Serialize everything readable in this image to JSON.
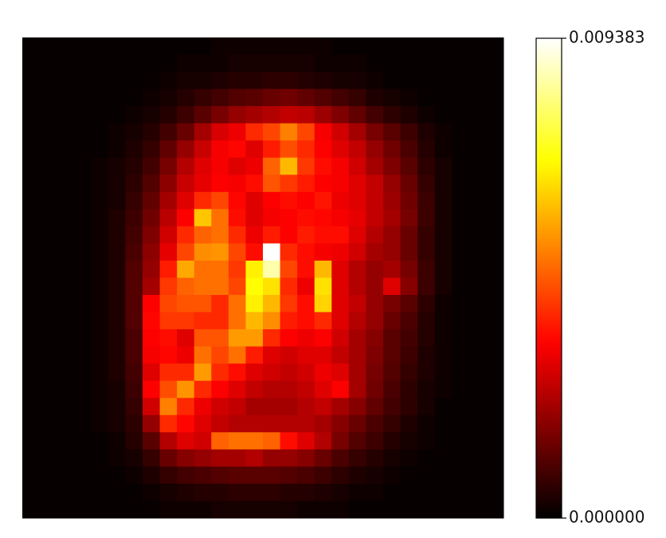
{
  "chart_data": {
    "type": "heatmap",
    "colormap": "hot",
    "values": [
      [
        0.0001,
        0.0001,
        0.0001,
        0.0001,
        0.0001,
        0.0001,
        0.0001,
        0.0001,
        0.0001,
        0.0001,
        0.0001,
        0.0002,
        0.0002,
        0.0002,
        0.0002,
        0.0002,
        0.0002,
        0.0002,
        0.0001,
        0.0001,
        0.0001,
        0.0001,
        0.0001,
        0.0001,
        0.0001,
        0.0001,
        0.0001,
        0.0001
      ],
      [
        0.0001,
        0.0001,
        0.0001,
        0.0001,
        0.0001,
        0.0001,
        0.0001,
        0.0001,
        0.0001,
        0.0002,
        0.0002,
        0.0002,
        0.0003,
        0.0003,
        0.0003,
        0.0003,
        0.0003,
        0.0002,
        0.0002,
        0.0002,
        0.0001,
        0.0001,
        0.0001,
        0.0001,
        0.0001,
        0.0001,
        0.0001,
        0.0001
      ],
      [
        0.0001,
        0.0001,
        0.0001,
        0.0001,
        0.0001,
        0.0001,
        0.0001,
        0.0001,
        0.0002,
        0.0003,
        0.0003,
        0.0004,
        0.0005,
        0.0005,
        0.0006,
        0.0006,
        0.0005,
        0.0004,
        0.0003,
        0.0003,
        0.0002,
        0.0001,
        0.0001,
        0.0001,
        0.0001,
        0.0001,
        0.0001,
        0.0001
      ],
      [
        0.0001,
        0.0001,
        0.0001,
        0.0001,
        0.0001,
        0.0001,
        0.0001,
        0.0002,
        0.0003,
        0.0005,
        0.0007,
        0.0009,
        0.0011,
        0.0012,
        0.0014,
        0.0015,
        0.0013,
        0.0011,
        0.0009,
        0.0007,
        0.0004,
        0.0003,
        0.0002,
        0.0001,
        0.0001,
        0.0001,
        0.0001,
        0.0001
      ],
      [
        0.0001,
        0.0001,
        0.0001,
        0.0001,
        0.0001,
        0.0001,
        0.0002,
        0.0003,
        0.0005,
        0.0008,
        0.0012,
        0.0016,
        0.002,
        0.0022,
        0.0024,
        0.0026,
        0.0025,
        0.0021,
        0.0017,
        0.0013,
        0.0009,
        0.0006,
        0.0004,
        0.0002,
        0.0001,
        0.0001,
        0.0001,
        0.0001
      ],
      [
        0.0001,
        0.0001,
        0.0001,
        0.0001,
        0.0001,
        0.0002,
        0.0003,
        0.0005,
        0.0009,
        0.0014,
        0.0022,
        0.0029,
        0.0032,
        0.004,
        0.0044,
        0.0052,
        0.0044,
        0.0033,
        0.0028,
        0.0022,
        0.0016,
        0.0012,
        0.0008,
        0.0004,
        0.0002,
        0.0001,
        0.0001,
        0.0001
      ],
      [
        0.0001,
        0.0001,
        0.0001,
        0.0001,
        0.0001,
        0.0002,
        0.0004,
        0.0007,
        0.0013,
        0.002,
        0.0027,
        0.0033,
        0.0035,
        0.003,
        0.0038,
        0.0045,
        0.004,
        0.0034,
        0.003,
        0.0026,
        0.002,
        0.0015,
        0.001,
        0.0005,
        0.0002,
        0.0001,
        0.0001,
        0.0001
      ],
      [
        0.0001,
        0.0001,
        0.0001,
        0.0001,
        0.0002,
        0.0003,
        0.0005,
        0.0009,
        0.0016,
        0.0024,
        0.003,
        0.0033,
        0.003,
        0.0032,
        0.0048,
        0.006,
        0.0042,
        0.0036,
        0.0033,
        0.0028,
        0.0022,
        0.0017,
        0.0012,
        0.0006,
        0.0003,
        0.0001,
        0.0001,
        0.0001
      ],
      [
        0.0001,
        0.0001,
        0.0001,
        0.0001,
        0.0002,
        0.0003,
        0.0006,
        0.0011,
        0.0019,
        0.0027,
        0.0031,
        0.0034,
        0.0033,
        0.0036,
        0.0046,
        0.0042,
        0.0038,
        0.0034,
        0.0033,
        0.003,
        0.0026,
        0.002,
        0.0014,
        0.0007,
        0.0003,
        0.0001,
        0.0001,
        0.0001
      ],
      [
        0.0001,
        0.0001,
        0.0001,
        0.0001,
        0.0002,
        0.0003,
        0.0007,
        0.0013,
        0.0022,
        0.003,
        0.004,
        0.0044,
        0.0035,
        0.003,
        0.0034,
        0.0036,
        0.0034,
        0.0037,
        0.0032,
        0.003,
        0.0026,
        0.0021,
        0.0015,
        0.0008,
        0.0003,
        0.0001,
        0.0001,
        0.0001
      ],
      [
        0.0001,
        0.0001,
        0.0001,
        0.0001,
        0.0002,
        0.0004,
        0.0008,
        0.0015,
        0.0025,
        0.0034,
        0.0062,
        0.005,
        0.0036,
        0.003,
        0.0033,
        0.0034,
        0.0036,
        0.0035,
        0.0033,
        0.0031,
        0.0026,
        0.0022,
        0.0016,
        0.0008,
        0.0003,
        0.0001,
        0.0001,
        0.0001
      ],
      [
        0.0001,
        0.0001,
        0.0001,
        0.0001,
        0.0002,
        0.0004,
        0.0009,
        0.0017,
        0.0028,
        0.004,
        0.0048,
        0.005,
        0.004,
        0.0032,
        0.0038,
        0.0034,
        0.0038,
        0.0036,
        0.0036,
        0.003,
        0.0024,
        0.002,
        0.0014,
        0.0007,
        0.0003,
        0.0001,
        0.0001,
        0.0001
      ],
      [
        0.0001,
        0.0001,
        0.0001,
        0.0001,
        0.0002,
        0.0004,
        0.001,
        0.0019,
        0.0031,
        0.0044,
        0.0054,
        0.0055,
        0.0044,
        0.0036,
        0.00938,
        0.004,
        0.0036,
        0.0033,
        0.0032,
        0.0028,
        0.0022,
        0.002,
        0.0014,
        0.0007,
        0.0003,
        0.0001,
        0.0001,
        0.0001
      ],
      [
        0.0001,
        0.0001,
        0.0001,
        0.0001,
        0.0002,
        0.0004,
        0.0011,
        0.002,
        0.0038,
        0.0058,
        0.005,
        0.005,
        0.0042,
        0.0068,
        0.0086,
        0.0044,
        0.0036,
        0.006,
        0.003,
        0.0024,
        0.002,
        0.0022,
        0.0016,
        0.0008,
        0.0003,
        0.0001,
        0.0001,
        0.0001
      ],
      [
        0.0001,
        0.0001,
        0.0001,
        0.0001,
        0.0002,
        0.0004,
        0.0011,
        0.0022,
        0.0042,
        0.0048,
        0.005,
        0.005,
        0.0044,
        0.007,
        0.0066,
        0.004,
        0.0032,
        0.0066,
        0.003,
        0.0024,
        0.002,
        0.003,
        0.0018,
        0.0008,
        0.0003,
        0.0001,
        0.0001,
        0.0001
      ],
      [
        0.0001,
        0.0001,
        0.0001,
        0.0001,
        0.0002,
        0.0004,
        0.0011,
        0.0034,
        0.0044,
        0.0046,
        0.0046,
        0.004,
        0.005,
        0.0068,
        0.006,
        0.0042,
        0.0036,
        0.0064,
        0.003,
        0.0026,
        0.002,
        0.0016,
        0.0012,
        0.0006,
        0.0002,
        0.0001,
        0.0001,
        0.0001
      ],
      [
        0.0001,
        0.0001,
        0.0001,
        0.0001,
        0.0002,
        0.0004,
        0.0011,
        0.0035,
        0.0042,
        0.0042,
        0.004,
        0.004,
        0.005,
        0.006,
        0.0054,
        0.0038,
        0.0036,
        0.004,
        0.003,
        0.0024,
        0.002,
        0.0014,
        0.001,
        0.0005,
        0.0002,
        0.0001,
        0.0001,
        0.0001
      ],
      [
        0.0001,
        0.0001,
        0.0001,
        0.0001,
        0.0002,
        0.0004,
        0.001,
        0.0034,
        0.0036,
        0.003,
        0.0046,
        0.0046,
        0.0056,
        0.0056,
        0.004,
        0.0034,
        0.0032,
        0.0034,
        0.0028,
        0.0022,
        0.0018,
        0.0012,
        0.0009,
        0.0005,
        0.0002,
        0.0001,
        0.0001,
        0.0001
      ],
      [
        0.0001,
        0.0001,
        0.0001,
        0.0001,
        0.0002,
        0.0004,
        0.001,
        0.0033,
        0.0035,
        0.0032,
        0.005,
        0.0044,
        0.005,
        0.0038,
        0.003,
        0.0028,
        0.003,
        0.003,
        0.0026,
        0.0022,
        0.0017,
        0.0012,
        0.0008,
        0.0004,
        0.0002,
        0.0001,
        0.0001,
        0.0001
      ],
      [
        0.0001,
        0.0001,
        0.0001,
        0.0001,
        0.0002,
        0.0004,
        0.0009,
        0.003,
        0.004,
        0.004,
        0.0056,
        0.004,
        0.0036,
        0.003,
        0.0028,
        0.0026,
        0.0028,
        0.0032,
        0.003,
        0.0022,
        0.0016,
        0.0011,
        0.0007,
        0.0004,
        0.0002,
        0.0001,
        0.0001,
        0.0001
      ],
      [
        0.0001,
        0.0001,
        0.0001,
        0.0001,
        0.0002,
        0.0003,
        0.0008,
        0.0034,
        0.0045,
        0.0055,
        0.004,
        0.0034,
        0.003,
        0.0026,
        0.0024,
        0.0024,
        0.0026,
        0.003,
        0.0034,
        0.0022,
        0.0015,
        0.001,
        0.0006,
        0.0003,
        0.0002,
        0.0001,
        0.0001,
        0.0001
      ],
      [
        0.0001,
        0.0001,
        0.0001,
        0.0001,
        0.0002,
        0.0003,
        0.0007,
        0.0028,
        0.0052,
        0.004,
        0.0032,
        0.0028,
        0.0026,
        0.0022,
        0.0022,
        0.0022,
        0.0024,
        0.0026,
        0.0022,
        0.0018,
        0.0013,
        0.0009,
        0.0006,
        0.0003,
        0.0001,
        0.0001,
        0.0001,
        0.0001
      ],
      [
        0.0001,
        0.0001,
        0.0001,
        0.0001,
        0.0002,
        0.0003,
        0.0006,
        0.002,
        0.004,
        0.0035,
        0.003,
        0.0026,
        0.0024,
        0.0024,
        0.0024,
        0.0024,
        0.0024,
        0.0022,
        0.0018,
        0.0014,
        0.001,
        0.0007,
        0.0004,
        0.0002,
        0.0001,
        0.0001,
        0.0001,
        0.0001
      ],
      [
        0.0001,
        0.0001,
        0.0001,
        0.0001,
        0.0001,
        0.0002,
        0.0005,
        0.0012,
        0.0024,
        0.003,
        0.0028,
        0.0048,
        0.005,
        0.005,
        0.0048,
        0.0036,
        0.003,
        0.0024,
        0.0016,
        0.0011,
        0.0008,
        0.0005,
        0.0003,
        0.0002,
        0.0001,
        0.0001,
        0.0001,
        0.0001
      ],
      [
        0.0001,
        0.0001,
        0.0001,
        0.0001,
        0.0001,
        0.0002,
        0.0003,
        0.0007,
        0.0014,
        0.0018,
        0.002,
        0.0022,
        0.0022,
        0.0024,
        0.002,
        0.002,
        0.0018,
        0.0014,
        0.001,
        0.0007,
        0.0005,
        0.0003,
        0.0002,
        0.0001,
        0.0001,
        0.0001,
        0.0001,
        0.0001
      ],
      [
        0.0001,
        0.0001,
        0.0001,
        0.0001,
        0.0001,
        0.0001,
        0.0002,
        0.0004,
        0.0007,
        0.0009,
        0.001,
        0.0011,
        0.0012,
        0.0012,
        0.0012,
        0.0011,
        0.001,
        0.0008,
        0.0006,
        0.0004,
        0.0003,
        0.0002,
        0.0001,
        0.0001,
        0.0001,
        0.0001,
        0.0001,
        0.0001
      ],
      [
        0.0001,
        0.0001,
        0.0001,
        0.0001,
        0.0001,
        0.0001,
        0.0001,
        0.0002,
        0.0003,
        0.0004,
        0.0005,
        0.0005,
        0.0006,
        0.0006,
        0.0006,
        0.0005,
        0.0005,
        0.0004,
        0.0003,
        0.0002,
        0.0002,
        0.0001,
        0.0001,
        0.0001,
        0.0001,
        0.0001,
        0.0001,
        0.0001
      ],
      [
        0.0001,
        0.0001,
        0.0001,
        0.0001,
        0.0001,
        0.0001,
        0.0001,
        0.0001,
        0.0002,
        0.0002,
        0.0002,
        0.0003,
        0.0003,
        0.0003,
        0.0003,
        0.0003,
        0.0002,
        0.0002,
        0.0002,
        0.0001,
        0.0001,
        0.0001,
        0.0001,
        0.0001,
        0.0001,
        0.0001,
        0.0001,
        0.0001
      ]
    ],
    "clim": [
      0,
      0.009383
    ],
    "cticks": [
      {
        "value": 0,
        "label": "0.000000"
      },
      0.009383
    ]
  }
}
